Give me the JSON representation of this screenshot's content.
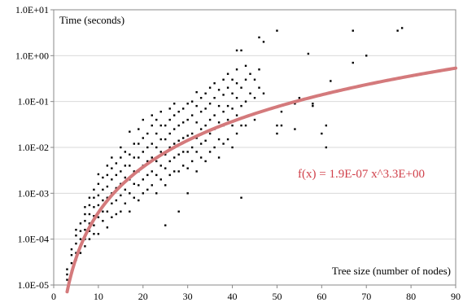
{
  "chart_data": {
    "type": "scatter",
    "title": "",
    "ylabel": "Time (seconds)",
    "xlabel": "Tree size (number of nodes)",
    "xlim": [
      0,
      90
    ],
    "ylim": [
      1e-05,
      10
    ],
    "yscale": "log",
    "x_ticks": [
      "0",
      "10",
      "20",
      "30",
      "40",
      "50",
      "60",
      "70",
      "80",
      "90"
    ],
    "y_ticks": [
      "1.0E-05",
      "1.0E-04",
      "1.0E-03",
      "1.0E-02",
      "1.0E-01",
      "1.0E+00",
      "1.0E+01"
    ],
    "grid": "horizontal",
    "legend": "none",
    "series": [
      {
        "kind": "points",
        "color": "#000000",
        "points": [
          [
            3,
            1.3e-05
          ],
          [
            3,
            1.7e-05
          ],
          [
            3,
            2.2e-05
          ],
          [
            4,
            2e-05
          ],
          [
            4,
            3e-05
          ],
          [
            4,
            4.5e-05
          ],
          [
            4,
            6e-05
          ],
          [
            5,
            3.5e-05
          ],
          [
            5,
            5e-05
          ],
          [
            5,
            8e-05
          ],
          [
            5,
            0.00012
          ],
          [
            5,
            0.00016
          ],
          [
            6,
            5e-05
          ],
          [
            6,
            7e-05
          ],
          [
            6,
            0.0001
          ],
          [
            6,
            0.00015
          ],
          [
            6,
            0.00022
          ],
          [
            7,
            7e-05
          ],
          [
            7,
            0.0001
          ],
          [
            7,
            0.00016
          ],
          [
            7,
            0.00025
          ],
          [
            7,
            0.00035
          ],
          [
            7,
            0.0005
          ],
          [
            8,
            0.0001
          ],
          [
            8,
            0.00015
          ],
          [
            8,
            0.00022
          ],
          [
            8,
            0.00035
          ],
          [
            8,
            0.00055
          ],
          [
            8,
            0.0008
          ],
          [
            9,
            0.00013
          ],
          [
            9,
            0.0002
          ],
          [
            9,
            0.00032
          ],
          [
            9,
            0.0005
          ],
          [
            9,
            0.0008
          ],
          [
            9,
            0.0012
          ],
          [
            10,
            0.00013
          ],
          [
            10,
            0.0003
          ],
          [
            10,
            0.00055
          ],
          [
            10,
            0.0009
          ],
          [
            10,
            0.0016
          ],
          [
            10,
            0.0026
          ],
          [
            11,
            0.00025
          ],
          [
            11,
            0.0004
          ],
          [
            11,
            0.0007
          ],
          [
            11,
            0.0012
          ],
          [
            11,
            0.0022
          ],
          [
            12,
            0.00018
          ],
          [
            12,
            0.0004
          ],
          [
            12,
            0.0008
          ],
          [
            12,
            0.0014
          ],
          [
            12,
            0.0025
          ],
          [
            12,
            0.004
          ],
          [
            13,
            0.0003
          ],
          [
            13,
            0.0006
          ],
          [
            13,
            0.001
          ],
          [
            13,
            0.002
          ],
          [
            13,
            0.0035
          ],
          [
            13,
            0.006
          ],
          [
            14,
            0.00035
          ],
          [
            14,
            0.0007
          ],
          [
            14,
            0.0013
          ],
          [
            14,
            0.0025
          ],
          [
            14,
            0.0045
          ],
          [
            15,
            0.0004
          ],
          [
            15,
            0.0009
          ],
          [
            15,
            0.0016
          ],
          [
            15,
            0.003
          ],
          [
            15,
            0.006
          ],
          [
            15,
            0.01
          ],
          [
            16,
            0.0006
          ],
          [
            16,
            0.0012
          ],
          [
            16,
            0.0022
          ],
          [
            16,
            0.004
          ],
          [
            16,
            0.008
          ],
          [
            17,
            0.022
          ],
          [
            17,
            0.0004
          ],
          [
            17,
            0.001
          ],
          [
            17,
            0.002
          ],
          [
            17,
            0.004
          ],
          [
            17,
            0.007
          ],
          [
            18,
            0.0008
          ],
          [
            18,
            0.0016
          ],
          [
            18,
            0.003
          ],
          [
            18,
            0.006
          ],
          [
            18,
            0.012
          ],
          [
            19,
            0.0007
          ],
          [
            19,
            0.0015
          ],
          [
            19,
            0.003
          ],
          [
            19,
            0.006
          ],
          [
            19,
            0.012
          ],
          [
            19,
            0.025
          ],
          [
            20,
            0.001
          ],
          [
            20,
            0.002
          ],
          [
            20,
            0.004
          ],
          [
            20,
            0.008
          ],
          [
            20,
            0.016
          ],
          [
            20,
            0.04
          ],
          [
            21,
            0.0012
          ],
          [
            21,
            0.0025
          ],
          [
            21,
            0.005
          ],
          [
            21,
            0.01
          ],
          [
            21,
            0.02
          ],
          [
            22,
            0.0015
          ],
          [
            22,
            0.003
          ],
          [
            22,
            0.006
          ],
          [
            22,
            0.012
          ],
          [
            22,
            0.03
          ],
          [
            22,
            0.05
          ],
          [
            23,
            0.001
          ],
          [
            23,
            0.0025
          ],
          [
            23,
            0.005
          ],
          [
            23,
            0.01
          ],
          [
            23,
            0.02
          ],
          [
            23,
            0.04
          ],
          [
            24,
            0.002
          ],
          [
            24,
            0.004
          ],
          [
            24,
            0.008
          ],
          [
            24,
            0.015
          ],
          [
            24,
            0.03
          ],
          [
            24,
            0.06
          ],
          [
            25,
            0.0002
          ],
          [
            25,
            0.0015
          ],
          [
            25,
            0.0035
          ],
          [
            25,
            0.007
          ],
          [
            25,
            0.015
          ],
          [
            25,
            0.03
          ],
          [
            26,
            0.0025
          ],
          [
            26,
            0.005
          ],
          [
            26,
            0.01
          ],
          [
            26,
            0.02
          ],
          [
            26,
            0.04
          ],
          [
            26,
            0.07
          ],
          [
            27,
            0.003
          ],
          [
            27,
            0.006
          ],
          [
            27,
            0.012
          ],
          [
            27,
            0.025
          ],
          [
            27,
            0.05
          ],
          [
            27,
            0.09
          ],
          [
            28,
            0.0004
          ],
          [
            28,
            0.003
          ],
          [
            28,
            0.007
          ],
          [
            28,
            0.014
          ],
          [
            28,
            0.03
          ],
          [
            28,
            0.06
          ],
          [
            29,
            0.004
          ],
          [
            29,
            0.008
          ],
          [
            29,
            0.016
          ],
          [
            29,
            0.035
          ],
          [
            29,
            0.07
          ],
          [
            30,
            0.001
          ],
          [
            30,
            0.0035
          ],
          [
            30,
            0.008
          ],
          [
            30,
            0.018
          ],
          [
            30,
            0.04
          ],
          [
            30,
            0.09
          ],
          [
            31,
            0.005
          ],
          [
            31,
            0.01
          ],
          [
            31,
            0.02
          ],
          [
            31,
            0.05
          ],
          [
            31,
            0.1
          ],
          [
            32,
            0.003
          ],
          [
            32,
            0.008
          ],
          [
            32,
            0.016
          ],
          [
            32,
            0.035
          ],
          [
            32,
            0.08
          ],
          [
            32,
            0.16
          ],
          [
            33,
            0.006
          ],
          [
            33,
            0.012
          ],
          [
            33,
            0.025
          ],
          [
            33,
            0.06
          ],
          [
            33,
            0.12
          ],
          [
            34,
            0.005
          ],
          [
            34,
            0.014
          ],
          [
            34,
            0.03
          ],
          [
            34,
            0.07
          ],
          [
            34,
            0.15
          ],
          [
            35,
            0.008
          ],
          [
            35,
            0.02
          ],
          [
            35,
            0.04
          ],
          [
            35,
            0.09
          ],
          [
            35,
            0.2
          ],
          [
            36,
            0.01
          ],
          [
            36,
            0.025
          ],
          [
            36,
            0.05
          ],
          [
            36,
            0.12
          ],
          [
            36,
            0.25
          ],
          [
            37,
            0.006
          ],
          [
            37,
            0.015
          ],
          [
            37,
            0.035
          ],
          [
            37,
            0.08
          ],
          [
            37,
            0.18
          ],
          [
            38,
            0.012
          ],
          [
            38,
            0.03
          ],
          [
            38,
            0.06
          ],
          [
            38,
            0.14
          ],
          [
            38,
            0.3
          ],
          [
            39,
            0.015
          ],
          [
            39,
            0.04
          ],
          [
            39,
            0.08
          ],
          [
            39,
            0.2
          ],
          [
            39,
            0.4
          ],
          [
            40,
            0.01
          ],
          [
            40,
            0.03
          ],
          [
            40,
            0.07
          ],
          [
            40,
            0.15
          ],
          [
            40,
            0.3
          ],
          [
            41,
            0.02
          ],
          [
            41,
            0.05
          ],
          [
            41,
            0.12
          ],
          [
            41,
            0.25
          ],
          [
            41,
            0.5
          ],
          [
            41,
            1.3
          ],
          [
            42,
            0.0008
          ],
          [
            42,
            0.03
          ],
          [
            42,
            0.08
          ],
          [
            42,
            0.2
          ],
          [
            42,
            1.3
          ],
          [
            43,
            0.03
          ],
          [
            43,
            0.1
          ],
          [
            43,
            0.3
          ],
          [
            43,
            0.6
          ],
          [
            44,
            0.05
          ],
          [
            44,
            0.15
          ],
          [
            44,
            0.4
          ],
          [
            45,
            0.04
          ],
          [
            45,
            0.12
          ],
          [
            45,
            0.3
          ],
          [
            46,
            2.5
          ],
          [
            46,
            0.2
          ],
          [
            46,
            0.5
          ],
          [
            47,
            0.15
          ],
          [
            47,
            2.0
          ],
          [
            50,
            3.5
          ],
          [
            50,
            0.02
          ],
          [
            50,
            0.03
          ],
          [
            51,
            0.03
          ],
          [
            51,
            0.06
          ],
          [
            54,
            0.025
          ],
          [
            54,
            0.09
          ],
          [
            55,
            0.12
          ],
          [
            57,
            1.1
          ],
          [
            58,
            0.08
          ],
          [
            58,
            0.09
          ],
          [
            60,
            0.02
          ],
          [
            61,
            0.03
          ],
          [
            61,
            0.01
          ],
          [
            62,
            0.28
          ],
          [
            67,
            3.5
          ],
          [
            67,
            0.7
          ],
          [
            70,
            1.0
          ],
          [
            77,
            3.5
          ],
          [
            78,
            4.0
          ]
        ]
      },
      {
        "kind": "fit",
        "color": "#d47a7c",
        "equation": "f(x) = 1.9E-07 x^3.3E+00",
        "coef": 1.9e-07,
        "exponent": 3.3,
        "x_range": [
          3,
          90
        ]
      }
    ]
  }
}
